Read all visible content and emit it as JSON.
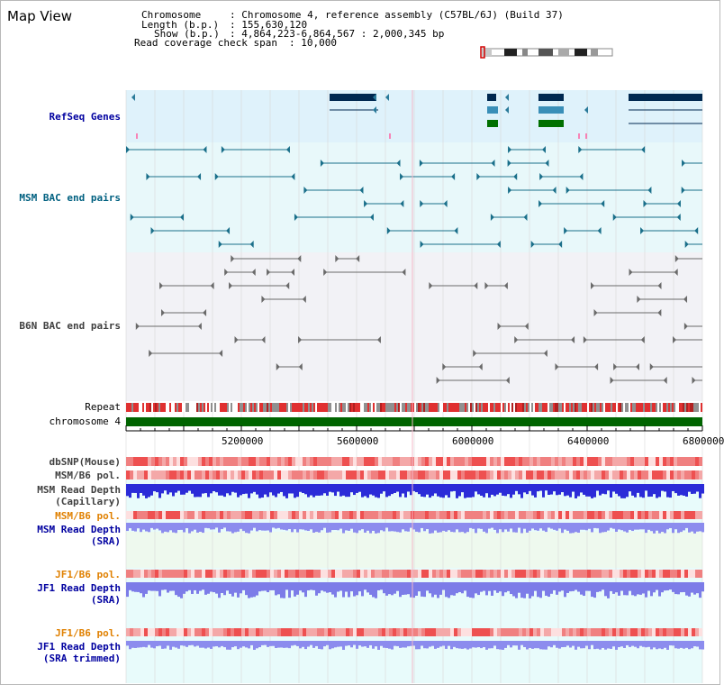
{
  "title": "Map View",
  "header": {
    "chromosome_key": "Chromosome",
    "chromosome_val": ": Chromosome 4, reference assembly (C57BL/6J) (Build 37)",
    "length_key": "Length (b.p.)",
    "length_val": ": 155,630,120",
    "show_key": "Show (b.p.)",
    "show_val": ": 4,864,223-6,864,567 : 2,000,345 bp",
    "span_key": "Read coverage check span",
    "span_val": ": 10,000"
  },
  "tracks": {
    "refseq": "RefSeq Genes",
    "msm_bac": "MSM BAC end pairs",
    "b6n_bac": "B6N BAC end pairs",
    "repeat": "Repeat",
    "chrom": "chromosome 4",
    "dbsnp": "dbSNP(Mouse)",
    "msm_pol": "MSM/B6 pol.",
    "msm_cap_1": "MSM Read Depth",
    "msm_cap_2": "(Capillary)",
    "msm_pol2": "MSM/B6 pol.",
    "msm_sra_1": "MSM Read Depth",
    "msm_sra_2": "(SRA)",
    "jf1_pol": "JF1/B6 pol.",
    "jf1_sra_1": "JF1 Read Depth",
    "jf1_sra_2": "(SRA)",
    "jf1_pol2": "JF1/B6 pol.",
    "jf1_tr_1": "JF1 Read Depth",
    "jf1_tr_2": "(SRA trimmed)"
  },
  "axis": {
    "ticks": [
      "5200000",
      "5600000",
      "6000000",
      "6400000",
      "6800000"
    ]
  },
  "colors": {
    "refseq_label": "#0000a0",
    "msm_label": "#006080",
    "b6n_label": "#404040",
    "pol_orange": "#e08000",
    "depth_blue": "#0000a0",
    "chrom_green": "#006400"
  }
}
